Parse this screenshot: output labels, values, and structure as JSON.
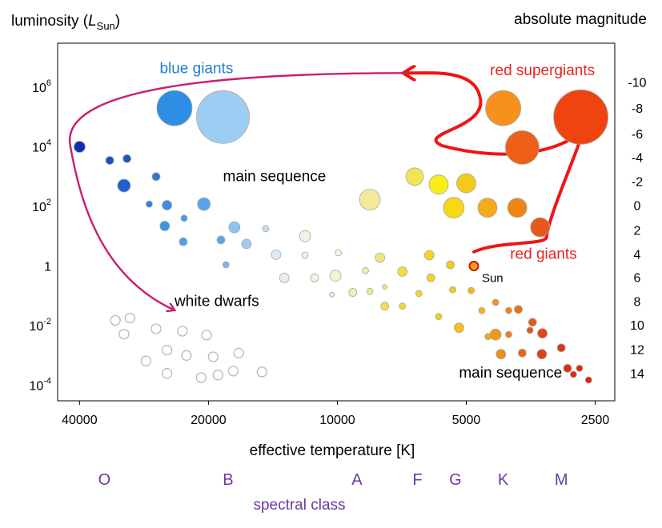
{
  "chart_data": {
    "type": "scatter",
    "title": "",
    "ylabel": "luminosity (L_Sun)",
    "ylabel_parts": {
      "main": "luminosity  (",
      "symbol": "L",
      "sub": "Sun",
      "close": ")"
    },
    "y2label": "absolute magnitude",
    "xlabel": "effective temperature [K]",
    "spectral_label": "spectral class",
    "xscale": "log-reversed",
    "yscale": "log",
    "xlim": [
      45000,
      2250
    ],
    "ylim": [
      3e-05,
      30000000
    ],
    "x_ticks": [
      {
        "value": 40000,
        "label": "40000"
      },
      {
        "value": 20000,
        "label": "20000"
      },
      {
        "value": 10000,
        "label": "10000"
      },
      {
        "value": 5000,
        "label": "5000"
      },
      {
        "value": 2500,
        "label": "2500"
      }
    ],
    "y_ticks": [
      {
        "value": 1000000,
        "base": "10",
        "exp": "6"
      },
      {
        "value": 10000,
        "base": "10",
        "exp": "4"
      },
      {
        "value": 100,
        "base": "10",
        "exp": "2"
      },
      {
        "value": 1,
        "base": "1",
        "exp": ""
      },
      {
        "value": 0.01,
        "base": "10",
        "exp": "-2"
      },
      {
        "value": 0.0001,
        "base": "10",
        "exp": "-4"
      }
    ],
    "magnitude_ticks": [
      {
        "value": 1500000,
        "label": "-10"
      },
      {
        "value": 200000,
        "label": "-8"
      },
      {
        "value": 28000,
        "label": "-6"
      },
      {
        "value": 4500,
        "label": "-4"
      },
      {
        "value": 700,
        "label": "-2"
      },
      {
        "value": 110,
        "label": "0"
      },
      {
        "value": 16,
        "label": "2"
      },
      {
        "value": 2.5,
        "label": "4"
      },
      {
        "value": 0.42,
        "label": "6"
      },
      {
        "value": 0.065,
        "label": "8"
      },
      {
        "value": 0.0105,
        "label": "10"
      },
      {
        "value": 0.0016,
        "label": "12"
      },
      {
        "value": 0.00025,
        "label": "14"
      }
    ],
    "spectral_classes": [
      {
        "label": "O",
        "temp": 35000
      },
      {
        "label": "B",
        "temp": 18000
      },
      {
        "label": "A",
        "temp": 9000
      },
      {
        "label": "F",
        "temp": 6500
      },
      {
        "label": "G",
        "temp": 5300
      },
      {
        "label": "K",
        "temp": 4100
      },
      {
        "label": "M",
        "temp": 3000
      }
    ],
    "annotations": [
      {
        "text": "blue giants",
        "x": 26000,
        "y": 3000000,
        "color": "#1e7fd0"
      },
      {
        "text": "red supergiants",
        "x": 4400,
        "y": 2500000,
        "color": "#e8231e"
      },
      {
        "text": "main sequence",
        "x": 18500,
        "y": 700,
        "color": "#000000"
      },
      {
        "text": "white dwarfs",
        "x": 24000,
        "y": 0.045,
        "color": "#000000"
      },
      {
        "text": "red giants",
        "x": 3950,
        "y": 1.75,
        "color": "#e8231e"
      },
      {
        "text": "main sequence",
        "x": 5200,
        "y": 0.00018,
        "color": "#000000"
      }
    ],
    "sun": {
      "label": "Sun",
      "x": 4800,
      "y": 1
    },
    "series": [
      {
        "group": "main-sequence",
        "points": [
          {
            "x": 40000,
            "y": 10000,
            "r": 7,
            "color": "#0b2fb8"
          },
          {
            "x": 34000,
            "y": 3500,
            "r": 5,
            "color": "#1d4fc2"
          },
          {
            "x": 31000,
            "y": 4000,
            "r": 5,
            "color": "#1c56c6"
          },
          {
            "x": 31500,
            "y": 500,
            "r": 8,
            "color": "#2160cf"
          },
          {
            "x": 26500,
            "y": 1000,
            "r": 5,
            "color": "#2b78d6"
          },
          {
            "x": 27500,
            "y": 120,
            "r": 4,
            "color": "#2f82da"
          },
          {
            "x": 25000,
            "y": 110,
            "r": 6,
            "color": "#3a8ddf"
          },
          {
            "x": 20500,
            "y": 120,
            "r": 8,
            "color": "#56a5e8"
          },
          {
            "x": 22800,
            "y": 40,
            "r": 4,
            "color": "#4a9ae4"
          },
          {
            "x": 25300,
            "y": 22,
            "r": 6,
            "color": "#3d93e0"
          },
          {
            "x": 22900,
            "y": 6.5,
            "r": 5,
            "color": "#4da0e6"
          },
          {
            "x": 18700,
            "y": 7.5,
            "r": 5,
            "color": "#5aa7ea"
          },
          {
            "x": 17400,
            "y": 20,
            "r": 7,
            "color": "#8cc4f0"
          },
          {
            "x": 16300,
            "y": 5.5,
            "r": 6,
            "color": "#9fcdf2"
          },
          {
            "x": 14700,
            "y": 18,
            "r": 4,
            "color": "#c2def5"
          },
          {
            "x": 18200,
            "y": 1.1,
            "r": 4,
            "color": "#7ab8ec"
          },
          {
            "x": 13900,
            "y": 2.4,
            "r": 6,
            "color": "#dceaf6"
          },
          {
            "x": 11900,
            "y": 10,
            "r": 7,
            "color": "#f2f2e4"
          },
          {
            "x": 13300,
            "y": 0.4,
            "r": 6,
            "color": "#ececec"
          },
          {
            "x": 11900,
            "y": 2.3,
            "r": 4,
            "color": "#eeeeea"
          },
          {
            "x": 11300,
            "y": 0.4,
            "r": 5,
            "color": "#f2f2e0"
          },
          {
            "x": 9950,
            "y": 2.8,
            "r": 4,
            "color": "#f4f2dc"
          },
          {
            "x": 10100,
            "y": 0.47,
            "r": 7,
            "color": "#f6f2d2"
          },
          {
            "x": 10300,
            "y": 0.11,
            "r": 3,
            "color": "#f2efc8"
          },
          {
            "x": 9200,
            "y": 0.13,
            "r": 5,
            "color": "#f4eeb8"
          },
          {
            "x": 8600,
            "y": 0.7,
            "r": 4,
            "color": "#f3eca6"
          },
          {
            "x": 8400,
            "y": 0.14,
            "r": 4,
            "color": "#f1e98e"
          },
          {
            "x": 7950,
            "y": 1.9,
            "r": 6,
            "color": "#f1e678"
          },
          {
            "x": 7750,
            "y": 0.2,
            "r": 3,
            "color": "#f4e36a"
          },
          {
            "x": 7750,
            "y": 0.045,
            "r": 5,
            "color": "#f2df50"
          },
          {
            "x": 7050,
            "y": 0.65,
            "r": 6,
            "color": "#f2dc40"
          },
          {
            "x": 7050,
            "y": 0.045,
            "r": 4,
            "color": "#f2d830"
          },
          {
            "x": 6450,
            "y": 0.12,
            "r": 4,
            "color": "#f4d820"
          },
          {
            "x": 6100,
            "y": 2.3,
            "r": 6,
            "color": "#f6d420"
          },
          {
            "x": 6050,
            "y": 0.4,
            "r": 5,
            "color": "#f5d21e"
          },
          {
            "x": 5800,
            "y": 0.02,
            "r": 4,
            "color": "#f4cd1a"
          },
          {
            "x": 5380,
            "y": 0.16,
            "r": 4,
            "color": "#f5c81c"
          },
          {
            "x": 5450,
            "y": 1.1,
            "r": 5,
            "color": "#f6c91c"
          },
          {
            "x": 5200,
            "y": 0.0085,
            "r": 6,
            "color": "#f3c01a"
          },
          {
            "x": 4870,
            "y": 0.15,
            "r": 4,
            "color": "#f4b81a"
          },
          {
            "x": 4600,
            "y": 0.032,
            "r": 4,
            "color": "#f3b01a"
          },
          {
            "x": 4450,
            "y": 0.0043,
            "r": 4,
            "color": "#f3a81a"
          },
          {
            "x": 4270,
            "y": 0.005,
            "r": 7,
            "color": "#ef9a18"
          },
          {
            "x": 4270,
            "y": 0.06,
            "r": 4,
            "color": "#ee9418"
          },
          {
            "x": 4150,
            "y": 0.0011,
            "r": 6,
            "color": "#ec9018"
          },
          {
            "x": 3980,
            "y": 0.032,
            "r": 4,
            "color": "#ea8418"
          },
          {
            "x": 3980,
            "y": 0.005,
            "r": 4,
            "color": "#ea7e18"
          },
          {
            "x": 3780,
            "y": 0.035,
            "r": 5,
            "color": "#e67016"
          },
          {
            "x": 3700,
            "y": 0.0012,
            "r": 5,
            "color": "#e36816"
          },
          {
            "x": 3500,
            "y": 0.013,
            "r": 5,
            "color": "#e45a16"
          },
          {
            "x": 3550,
            "y": 0.007,
            "r": 4,
            "color": "#e35216"
          },
          {
            "x": 3320,
            "y": 0.0055,
            "r": 6,
            "color": "#e04616"
          },
          {
            "x": 3330,
            "y": 0.0011,
            "r": 6,
            "color": "#df4014"
          },
          {
            "x": 3000,
            "y": 0.0018,
            "r": 5,
            "color": "#de3614"
          },
          {
            "x": 2900,
            "y": 0.00037,
            "r": 5,
            "color": "#dc2e12"
          },
          {
            "x": 2720,
            "y": 0.00037,
            "r": 4,
            "color": "#da2a12"
          },
          {
            "x": 2810,
            "y": 0.00023,
            "r": 4,
            "color": "#da2a12"
          },
          {
            "x": 2590,
            "y": 0.00015,
            "r": 4,
            "color": "#d82412"
          }
        ]
      },
      {
        "group": "blue-giants",
        "points": [
          {
            "x": 24000,
            "y": 200000,
            "r": 22,
            "color": "#2d8ee4"
          },
          {
            "x": 18500,
            "y": 100000,
            "r": 33,
            "color": "#9ccdf3"
          }
        ]
      },
      {
        "group": "giants",
        "points": [
          {
            "x": 8400,
            "y": 170,
            "r": 13,
            "color": "#f2ea9a"
          },
          {
            "x": 6600,
            "y": 1000,
            "r": 11,
            "color": "#f3e356"
          },
          {
            "x": 5800,
            "y": 540,
            "r": 12,
            "color": "#f8ee18"
          },
          {
            "x": 5000,
            "y": 600,
            "r": 12,
            "color": "#f4c81c"
          },
          {
            "x": 5350,
            "y": 90,
            "r": 13,
            "color": "#f6d818"
          },
          {
            "x": 4460,
            "y": 90,
            "r": 12,
            "color": "#f3ab1a"
          },
          {
            "x": 3800,
            "y": 90,
            "r": 12,
            "color": "#ef8416"
          },
          {
            "x": 3360,
            "y": 20,
            "r": 12,
            "color": "#e6581c"
          }
        ]
      },
      {
        "group": "red-supergiants",
        "points": [
          {
            "x": 4100,
            "y": 200000,
            "r": 22,
            "color": "#f8901c"
          },
          {
            "x": 3700,
            "y": 9500,
            "r": 21,
            "color": "#ee6018"
          },
          {
            "x": 2700,
            "y": 100000,
            "r": 34,
            "color": "#f04410"
          }
        ]
      },
      {
        "group": "white-dwarfs",
        "points": [
          {
            "x": 33000,
            "y": 0.015,
            "r": 6,
            "color": "#ffffff"
          },
          {
            "x": 30500,
            "y": 0.018,
            "r": 6,
            "color": "#ffffff"
          },
          {
            "x": 31500,
            "y": 0.0052,
            "r": 6,
            "color": "#ffffff"
          },
          {
            "x": 26500,
            "y": 0.0078,
            "r": 6,
            "color": "#ffffff"
          },
          {
            "x": 23000,
            "y": 0.0065,
            "r": 6,
            "color": "#ffffff"
          },
          {
            "x": 20200,
            "y": 0.0048,
            "r": 6,
            "color": "#ffffff"
          },
          {
            "x": 28000,
            "y": 0.00065,
            "r": 6,
            "color": "#ffffff"
          },
          {
            "x": 25000,
            "y": 0.0015,
            "r": 6,
            "color": "#ffffff"
          },
          {
            "x": 22500,
            "y": 0.001,
            "r": 6,
            "color": "#ffffff"
          },
          {
            "x": 19500,
            "y": 0.0009,
            "r": 6,
            "color": "#ffffff"
          },
          {
            "x": 17000,
            "y": 0.0012,
            "r": 6,
            "color": "#ffffff"
          },
          {
            "x": 25000,
            "y": 0.00025,
            "r": 6,
            "color": "#ffffff"
          },
          {
            "x": 20800,
            "y": 0.00018,
            "r": 6,
            "color": "#ffffff"
          },
          {
            "x": 19000,
            "y": 0.00022,
            "r": 6,
            "color": "#ffffff"
          },
          {
            "x": 17500,
            "y": 0.0003,
            "r": 6,
            "color": "#ffffff"
          },
          {
            "x": 15000,
            "y": 0.00028,
            "r": 6,
            "color": "#ffffff"
          }
        ]
      }
    ],
    "colors": {
      "red_track": "#f01414",
      "magenta_track": "#c81e6e",
      "spectral": "#6a3aa0"
    }
  }
}
